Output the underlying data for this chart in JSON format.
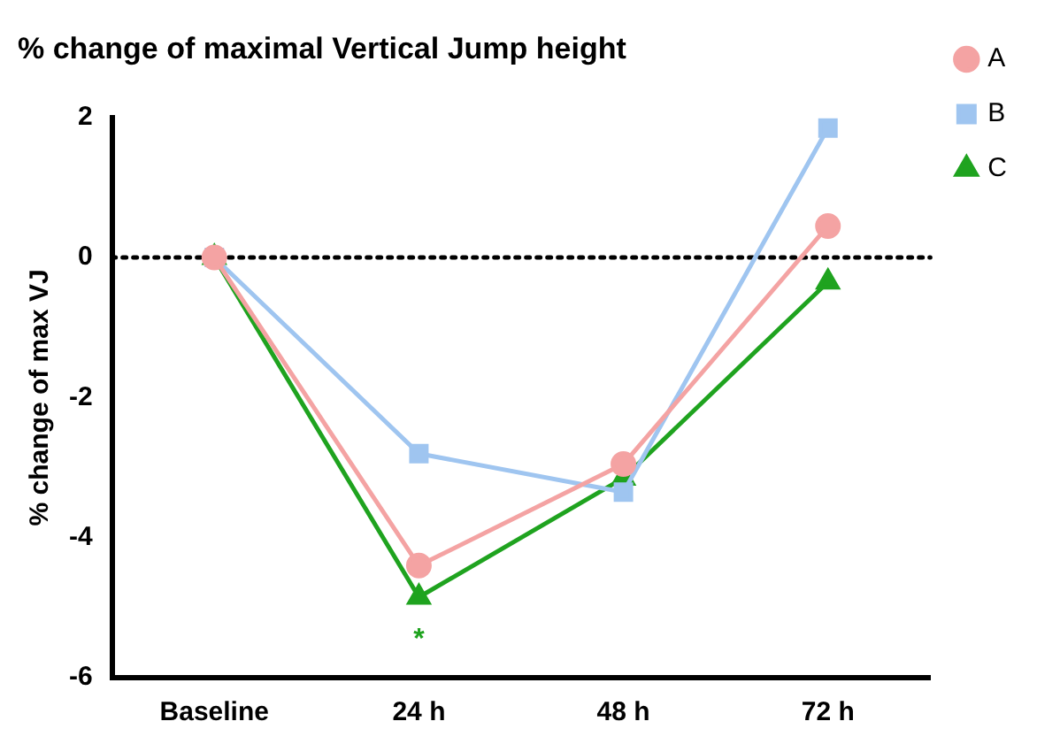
{
  "chart_data": {
    "type": "line",
    "title": "% change of maximal Vertical Jump height",
    "ylabel": "% change of max VJ",
    "categories": [
      "Baseline",
      "24 h",
      "48 h",
      "72 h"
    ],
    "series": [
      {
        "name": "A",
        "color": "#f4a3a3",
        "marker": "circle",
        "values": [
          0,
          -4.4,
          -2.95,
          0.45
        ]
      },
      {
        "name": "B",
        "color": "#9fc5f0",
        "marker": "square",
        "values": [
          0,
          -2.8,
          -3.35,
          1.85
        ]
      },
      {
        "name": "C",
        "color": "#1fa31f",
        "marker": "triangle",
        "values": [
          0,
          -4.85,
          -3.15,
          -0.35
        ]
      }
    ],
    "ylim": [
      -6,
      2
    ],
    "yticks": [
      -6,
      -4,
      -2,
      0,
      2
    ],
    "grid": false,
    "legend": "right",
    "ref_lines": [
      {
        "axis": "y",
        "value": 0,
        "color": "#000000",
        "line_style": "dotted"
      }
    ],
    "annotations": [
      "*"
    ]
  }
}
